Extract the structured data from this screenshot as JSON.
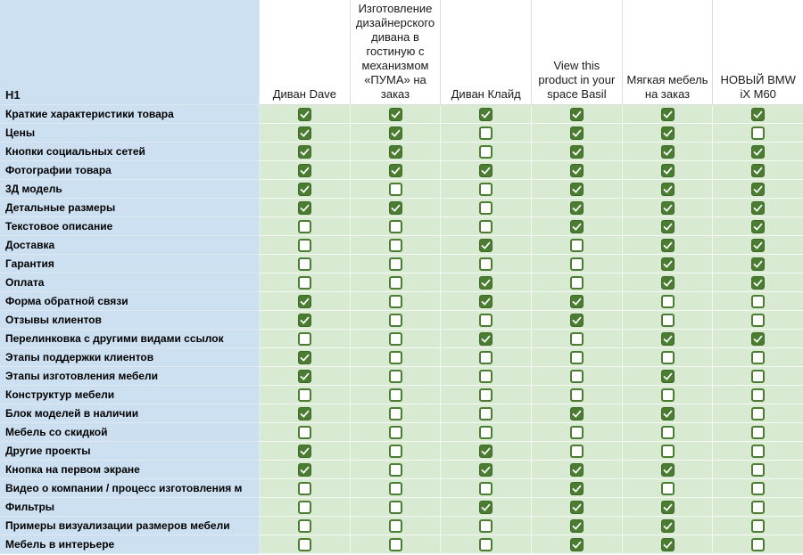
{
  "table": {
    "corner_label": "H1",
    "columns": [
      "Диван Dave",
      "Изготовление дизайнерского дивана в гостиную с механизмом «ПУМА» на заказ",
      "Диван Клайд",
      "View this product in your space Basil",
      "Мягкая мебель на заказ",
      "НОВЫЙ BMW iX M60"
    ],
    "rows": [
      {
        "label": "Краткие характеристики товара",
        "checks": [
          1,
          1,
          1,
          1,
          1,
          1
        ]
      },
      {
        "label": "Цены",
        "checks": [
          1,
          1,
          0,
          1,
          1,
          0
        ]
      },
      {
        "label": "Кнопки социальных сетей",
        "checks": [
          1,
          1,
          0,
          1,
          1,
          1
        ]
      },
      {
        "label": "Фотографии товара",
        "checks": [
          1,
          1,
          1,
          1,
          1,
          1
        ]
      },
      {
        "label": "3Д модель",
        "checks": [
          1,
          0,
          0,
          1,
          1,
          1
        ]
      },
      {
        "label": "Детальные размеры",
        "checks": [
          1,
          1,
          0,
          1,
          1,
          1
        ]
      },
      {
        "label": "Текстовое описание",
        "checks": [
          0,
          0,
          0,
          1,
          1,
          1
        ]
      },
      {
        "label": "Доставка",
        "checks": [
          0,
          0,
          1,
          0,
          1,
          1
        ]
      },
      {
        "label": "Гарантия",
        "checks": [
          0,
          0,
          0,
          0,
          1,
          1
        ]
      },
      {
        "label": "Оплата",
        "checks": [
          0,
          0,
          1,
          0,
          1,
          1
        ]
      },
      {
        "label": "Форма обратной связи",
        "checks": [
          1,
          0,
          1,
          1,
          0,
          0
        ]
      },
      {
        "label": "Отзывы клиентов",
        "checks": [
          1,
          0,
          0,
          1,
          0,
          0
        ]
      },
      {
        "label": "Перелинковка с другими видами ссылок",
        "checks": [
          0,
          0,
          1,
          0,
          1,
          1
        ]
      },
      {
        "label": "Этапы поддержки клиентов",
        "checks": [
          1,
          0,
          0,
          0,
          0,
          0
        ]
      },
      {
        "label": "Этапы изготовления мебели",
        "checks": [
          1,
          0,
          0,
          0,
          1,
          0
        ]
      },
      {
        "label": "Конструктур мебели",
        "checks": [
          0,
          0,
          0,
          0,
          0,
          0
        ]
      },
      {
        "label": "Блок моделей в наличии",
        "checks": [
          1,
          0,
          0,
          1,
          1,
          0
        ]
      },
      {
        "label": "Мебель со скидкой",
        "checks": [
          0,
          0,
          0,
          0,
          0,
          0
        ]
      },
      {
        "label": "Другие проекты",
        "checks": [
          1,
          0,
          1,
          0,
          0,
          0
        ]
      },
      {
        "label": "Кнопка на первом экране",
        "checks": [
          1,
          0,
          1,
          1,
          1,
          0
        ]
      },
      {
        "label": "Видео о компании / процесс изготовления м",
        "checks": [
          0,
          0,
          0,
          1,
          0,
          0
        ]
      },
      {
        "label": "Фильтры",
        "checks": [
          0,
          0,
          1,
          1,
          1,
          0
        ]
      },
      {
        "label": "Примеры визуализации размеров мебели",
        "checks": [
          0,
          0,
          0,
          1,
          1,
          0
        ]
      },
      {
        "label": "Мебель в интерьере",
        "checks": [
          0,
          0,
          0,
          1,
          1,
          0
        ]
      }
    ]
  },
  "icons": {
    "checkbox_checked_glyph": "✓",
    "checkbox_unchecked_glyph": ""
  },
  "colors": {
    "label_bg": "#cde0f2",
    "row_bg": "#d9ead3",
    "header_bg": "#ffffff",
    "checkbox_green": "#4a7c31",
    "checkbox_green_dark": "#3d6927",
    "check_stroke": "#ffffff"
  }
}
